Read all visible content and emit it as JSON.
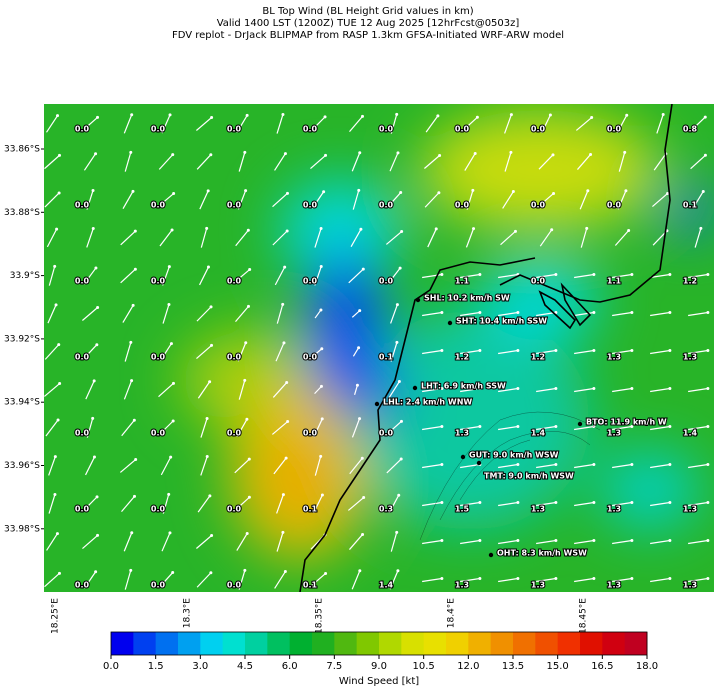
{
  "title": [
    "BL Top Wind (BL Height Grid values in km)",
    "Valid 1400 LST (1200Z) TUE 12 Aug 2025 [12hrFcst@0503z]",
    "FDV replot - DrJack BLIPMAP from RASP 1.3km GFSA-Initiated WRF-ARW model"
  ],
  "grid_values": [
    [
      "0.0",
      "0.0",
      "0.0",
      "0.0",
      "0.0",
      "0.0",
      "0.0",
      "0.0",
      "0.8"
    ],
    [
      "0.0",
      "0.0",
      "0.0",
      "0.0",
      "0.0",
      "0.0",
      "0.0",
      "0.0",
      "0.1"
    ],
    [
      "0.0",
      "0.0",
      "0.0",
      "0.0",
      "0.0",
      "1.1",
      "0.0",
      "1.1",
      "1.2"
    ],
    [
      "0.0",
      "0.0",
      "0.0",
      "0.0",
      "0.1",
      "1.2",
      "1.2",
      "1.3",
      "1.3"
    ],
    [
      "0.0",
      "0.0",
      "0.0",
      "0.0",
      "0.0",
      "1.3",
      "1.4",
      "1.3",
      "1.4"
    ],
    [
      "0.0",
      "0.0",
      "0.0",
      "0.1",
      "0.3",
      "1.5",
      "1.3",
      "1.3",
      "1.3"
    ],
    [
      "0.0",
      "0.0",
      "0.0",
      "0.1",
      "1.4",
      "1.3",
      "1.3",
      "1.3",
      "1.3"
    ]
  ],
  "stations": [
    "SHL: 10.2 km/h SW",
    "SHT: 10.4 km/h SSW",
    "LHT: 6.9 km/h SSW",
    "LHL: 2.4 km/h WNW",
    "BTO: 11.9 km/h W",
    "GUT: 9.0 km/h WSW",
    "TMT: 9.0 km/h WSW",
    "OHT: 8.3 km/h WSW"
  ],
  "lat_labels": [
    "33.86°S",
    "33.88°S",
    "33.9°S",
    "33.92°S",
    "33.94°S",
    "33.96°S",
    "33.98°S"
  ],
  "lon_labels": [
    "18.25°E",
    "18.3°E",
    "18.35°E",
    "18.4°E",
    "18.45°E"
  ],
  "colorbar": {
    "label": "Wind Speed [kt]",
    "ticks": [
      "0.0",
      "1.5",
      "3.0",
      "4.5",
      "6.0",
      "7.5",
      "9.0",
      "10.5",
      "12.0",
      "13.5",
      "15.0",
      "16.5",
      "18.0"
    ],
    "colors": [
      "#0000ee",
      "#0040f0",
      "#0070f0",
      "#00a0f0",
      "#00d0f0",
      "#00e0d0",
      "#00d0a0",
      "#00c060",
      "#00b030",
      "#20b020",
      "#50b810",
      "#80c800",
      "#b0d800",
      "#d8e000",
      "#e8e000",
      "#f0d000",
      "#f0b000",
      "#f09000",
      "#f07000",
      "#f05000",
      "#f03000",
      "#e01000",
      "#d00010",
      "#c00020"
    ]
  }
}
